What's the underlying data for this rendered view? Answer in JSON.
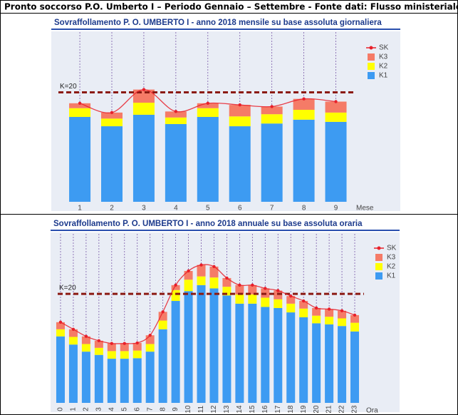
{
  "header": {
    "title": "Pronto soccorso P.O. Umberto I – Periodo Gennaio – Settembre -  Fonte dati: Flusso ministeriale EMUR"
  },
  "chart_data": [
    {
      "type": "bar",
      "stacked": true,
      "title": "Sovraffollamento P. O. UMBERTO I - anno 2018 mensile su base assoluta giornaliera",
      "x_label": "Mese",
      "categories": [
        "1",
        "2",
        "3",
        "4",
        "5",
        "6",
        "7",
        "8",
        "9"
      ],
      "ylim": [
        0,
        31
      ],
      "reference": {
        "label": "K=20",
        "value": 20
      },
      "series": [
        {
          "name": "K1",
          "color": "#3d9bf2",
          "values": [
            15.5,
            13.8,
            15.9,
            14.2,
            15.5,
            13.8,
            14.3,
            15.0,
            14.6
          ]
        },
        {
          "name": "K2",
          "color": "#ffff00",
          "values": [
            1.6,
            1.4,
            2.2,
            1.2,
            1.6,
            1.8,
            1.7,
            1.8,
            1.7
          ]
        },
        {
          "name": "K3",
          "color": "#f57b67",
          "values": [
            0.9,
            1.1,
            2.4,
            1.1,
            0.9,
            2.1,
            1.4,
            2.0,
            2.0
          ]
        },
        {
          "name": "SK",
          "kind": "line",
          "color": "#e8202a",
          "values": [
            18.0,
            16.3,
            20.5,
            16.5,
            18.0,
            17.7,
            17.4,
            18.8,
            18.3
          ]
        }
      ]
    },
    {
      "type": "bar",
      "stacked": true,
      "title": "Sovraffollamento P. O. UMBERTO I - anno 2018 annuale su base assoluta oraria",
      "x_label": "Ora",
      "categories": [
        "0",
        "1",
        "2",
        "3",
        "4",
        "5",
        "6",
        "7",
        "8",
        "9",
        "10",
        "11",
        "12",
        "13",
        "14",
        "15",
        "16",
        "17",
        "18",
        "19",
        "20",
        "21",
        "22",
        "23"
      ],
      "ylim": [
        0,
        31
      ],
      "reference": {
        "label": "K=20",
        "value": 20
      },
      "series": [
        {
          "name": "K1",
          "color": "#3d9bf2",
          "values": [
            12.2,
            10.7,
            9.4,
            8.8,
            8.1,
            8.1,
            8.2,
            9.4,
            13.5,
            18.7,
            20.5,
            21.6,
            21.0,
            19.7,
            18.2,
            18.2,
            17.6,
            17.4,
            16.6,
            15.7,
            14.6,
            14.4,
            14.1,
            13.1
          ]
        },
        {
          "name": "K2",
          "color": "#ffff00",
          "values": [
            1.3,
            1.4,
            1.4,
            1.3,
            1.4,
            1.4,
            1.4,
            1.4,
            1.6,
            2.0,
            2.1,
            1.6,
            2.0,
            1.6,
            1.7,
            1.7,
            1.7,
            1.6,
            1.6,
            1.6,
            1.4,
            1.4,
            1.4,
            1.6
          ]
        },
        {
          "name": "K3",
          "color": "#f57b67",
          "values": [
            1.3,
            1.4,
            1.4,
            1.3,
            1.4,
            1.4,
            1.4,
            1.6,
            1.6,
            0.9,
            1.6,
            2.1,
            2.0,
            1.6,
            1.7,
            1.7,
            1.7,
            1.6,
            1.4,
            1.4,
            1.4,
            1.4,
            1.4,
            1.4
          ]
        },
        {
          "name": "SK",
          "kind": "line",
          "color": "#e8202a",
          "values": [
            14.8,
            13.5,
            12.2,
            11.4,
            10.9,
            10.9,
            11.0,
            12.4,
            16.7,
            21.6,
            24.2,
            25.3,
            25.0,
            22.9,
            21.6,
            21.6,
            21.0,
            20.6,
            19.6,
            18.7,
            17.4,
            17.2,
            16.9,
            16.1
          ]
        }
      ]
    }
  ]
}
